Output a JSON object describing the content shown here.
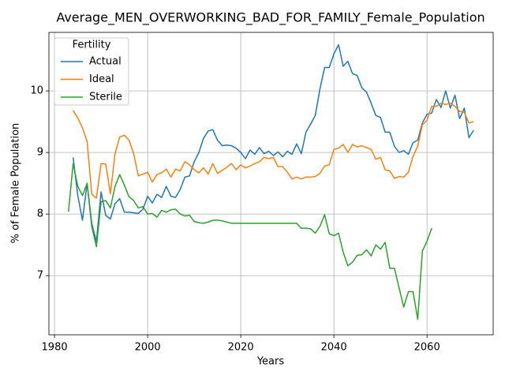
{
  "chart_data": {
    "type": "line",
    "title": "Average_MEN_OVERWORKING_BAD_FOR_FAMILY_Female_Population",
    "x_label": "Years",
    "y_label": "% of Female Population",
    "legend_title": "Fertility",
    "legend": "upper left",
    "grid": true,
    "x": [
      1983,
      1984,
      1985,
      1986,
      1987,
      1988,
      1989,
      1990,
      1991,
      1992,
      1993,
      1994,
      1995,
      1996,
      1997,
      1998,
      1999,
      2000,
      2001,
      2002,
      2003,
      2004,
      2005,
      2006,
      2007,
      2008,
      2009,
      2010,
      2011,
      2012,
      2013,
      2014,
      2015,
      2016,
      2017,
      2018,
      2019,
      2020,
      2021,
      2022,
      2023,
      2024,
      2025,
      2026,
      2027,
      2028,
      2029,
      2030,
      2031,
      2032,
      2033,
      2034,
      2035,
      2036,
      2037,
      2038,
      2039,
      2040,
      2041,
      2042,
      2043,
      2044,
      2045,
      2046,
      2047,
      2048,
      2049,
      2050,
      2051,
      2052,
      2053,
      2054,
      2055,
      2056,
      2057,
      2058,
      2059,
      2060,
      2061,
      2062,
      2063,
      2064,
      2065,
      2066,
      2067,
      2068,
      2069,
      2070
    ],
    "series": [
      {
        "name": "Actual",
        "color": "#1f77b4",
        "values": [
          null,
          8.92,
          8.3,
          7.9,
          8.5,
          7.85,
          7.55,
          8.36,
          7.98,
          7.92,
          8.17,
          8.25,
          8.03,
          8.03,
          8.02,
          8.01,
          8.08,
          8.29,
          8.18,
          8.32,
          8.27,
          8.45,
          8.29,
          8.27,
          8.4,
          8.6,
          8.62,
          8.85,
          9.0,
          9.23,
          9.35,
          9.37,
          9.2,
          9.11,
          9.12,
          9.11,
          9.07,
          9.0,
          8.9,
          9.04,
          8.97,
          9.08,
          8.98,
          9.02,
          8.95,
          9.01,
          8.93,
          9.02,
          8.97,
          9.14,
          8.98,
          9.33,
          9.46,
          9.6,
          10.03,
          10.38,
          10.38,
          10.6,
          10.75,
          10.4,
          10.48,
          10.28,
          10.25,
          10.05,
          9.98,
          9.8,
          9.6,
          9.57,
          9.33,
          9.33,
          9.1,
          9.0,
          9.03,
          8.97,
          9.16,
          9.2,
          9.48,
          9.62,
          9.64,
          9.86,
          9.73,
          10.0,
          9.72,
          9.93,
          9.55,
          9.72,
          9.24,
          9.36
        ]
      },
      {
        "name": "Ideal",
        "color": "#ff7f0e",
        "values": [
          null,
          9.68,
          9.56,
          9.4,
          9.18,
          8.32,
          8.26,
          8.82,
          8.81,
          8.33,
          8.98,
          9.25,
          9.28,
          9.2,
          8.98,
          8.62,
          8.65,
          8.68,
          8.52,
          8.64,
          8.67,
          8.73,
          8.6,
          8.73,
          8.7,
          8.85,
          8.8,
          8.72,
          8.67,
          8.75,
          8.65,
          8.82,
          8.66,
          8.71,
          8.76,
          8.82,
          8.72,
          8.8,
          8.75,
          8.78,
          8.82,
          8.85,
          8.92,
          8.9,
          8.92,
          8.77,
          8.77,
          8.68,
          8.57,
          8.6,
          8.57,
          8.6,
          8.6,
          8.61,
          8.66,
          8.78,
          8.8,
          9.05,
          9.07,
          9.13,
          9.0,
          9.13,
          9.09,
          9.11,
          9.08,
          9.05,
          8.89,
          8.92,
          8.72,
          8.7,
          8.58,
          8.61,
          8.6,
          8.68,
          8.94,
          9.1,
          9.45,
          9.52,
          9.75,
          9.75,
          9.8,
          9.78,
          9.8,
          9.75,
          9.67,
          9.65,
          9.48,
          9.5
        ]
      },
      {
        "name": "Sterile",
        "color": "#2ca02c",
        "values": [
          8.04,
          8.82,
          8.45,
          8.3,
          8.5,
          7.8,
          7.47,
          8.2,
          8.22,
          8.1,
          8.45,
          8.64,
          8.47,
          8.28,
          8.22,
          8.1,
          8.12,
          8.0,
          8.01,
          7.95,
          8.06,
          8.03,
          8.07,
          8.08,
          8.0,
          7.97,
          7.98,
          7.88,
          7.86,
          7.85,
          7.87,
          7.9,
          7.9,
          7.89,
          7.87,
          7.85,
          7.85,
          7.85,
          7.85,
          7.85,
          7.85,
          7.85,
          7.85,
          7.85,
          7.85,
          7.85,
          7.85,
          7.85,
          7.85,
          7.85,
          7.77,
          7.77,
          7.76,
          7.69,
          7.8,
          7.99,
          7.68,
          7.65,
          7.69,
          7.38,
          7.16,
          7.22,
          7.33,
          7.34,
          7.42,
          7.32,
          7.5,
          7.43,
          7.54,
          7.12,
          7.12,
          6.8,
          6.49,
          6.74,
          6.74,
          6.29,
          7.4,
          7.56,
          7.77,
          null,
          null,
          null,
          null,
          null,
          null,
          null,
          null,
          null
        ]
      }
    ],
    "xlim": [
      1978.8,
      2074.2
    ],
    "xticks": [
      1980,
      2000,
      2020,
      2040,
      2060
    ],
    "ylim": [
      6.04,
      10.95
    ],
    "yticks": [
      7,
      8,
      9,
      10
    ]
  }
}
